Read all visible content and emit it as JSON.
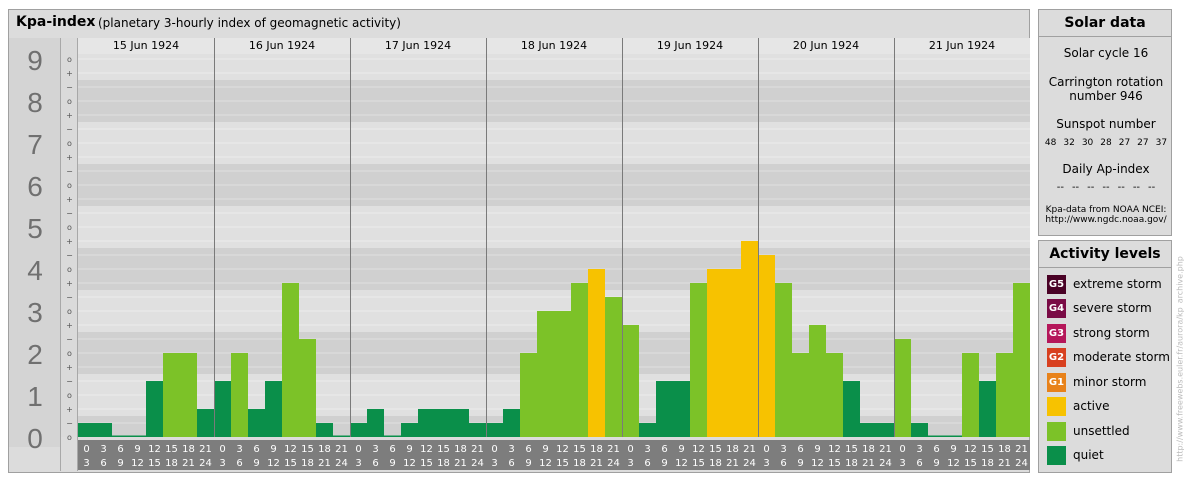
{
  "header": {
    "title": "Kpa-index",
    "subtitle": "(planetary 3-hourly index of geomagnetic activity)"
  },
  "chart_data": {
    "type": "bar",
    "title": "Kpa-index",
    "subtitle": "(planetary 3-hourly index of geomagnetic activity)",
    "ylim": [
      0,
      9
    ],
    "y_major_ticks": [
      "0",
      "1",
      "2",
      "3",
      "4",
      "5",
      "6",
      "7",
      "8",
      "9"
    ],
    "y_minor_ticks": [
      "+",
      "o",
      "−"
    ],
    "days": [
      "15 Jun 1924",
      "16 Jun 1924",
      "17 Jun 1924",
      "18 Jun 1924",
      "19 Jun 1924",
      "20 Jun 1924",
      "21 Jun 1924"
    ],
    "interval_start": [
      "0",
      "3",
      "6",
      "9",
      "12",
      "15",
      "18",
      "21"
    ],
    "interval_end": [
      "3",
      "6",
      "9",
      "12",
      "15",
      "18",
      "21",
      "24"
    ],
    "values": [
      0.333,
      0.333,
      0,
      0,
      1.333,
      2,
      2,
      0.667,
      1.333,
      2,
      0.667,
      1.333,
      3.667,
      2.333,
      0.333,
      0,
      0.333,
      0.667,
      0,
      0.333,
      0.667,
      0.667,
      0.667,
      0.333,
      0.333,
      0.667,
      2,
      3,
      3,
      3.667,
      4,
      3.333,
      2.667,
      0.333,
      1.333,
      1.333,
      3.667,
      4,
      4,
      4.667,
      4.333,
      3.667,
      2,
      2.667,
      2,
      1.333,
      0.333,
      0.333,
      2.333,
      0.333,
      0,
      0,
      2,
      1.333,
      2,
      3.667
    ],
    "colors": {
      "quiet": "#0a8f4a",
      "unsettled": "#7cc228",
      "active": "#f7c200",
      "minor_storm": "#e8821a",
      "moderate_storm": "#d8401f",
      "strong_storm": "#b5175a",
      "severe_storm": "#7a0c46",
      "extreme_storm": "#4a0226"
    }
  },
  "solar": {
    "title": "Solar data",
    "cycle": "Solar cycle 16",
    "carrington_line1": "Carrington rotation",
    "carrington_line2": "number 946",
    "sunspot_label": "Sunspot number",
    "sunspots": [
      "48",
      "32",
      "30",
      "28",
      "27",
      "27",
      "37"
    ],
    "ap_label": "Daily Ap-index",
    "ap_values": [
      "--",
      "--",
      "--",
      "--",
      "--",
      "--",
      "--"
    ],
    "credit_line1": "Kpa-data from NOAA NCEI:",
    "credit_line2": "http://www.ngdc.noaa.gov/"
  },
  "activity": {
    "title": "Activity levels",
    "items": [
      {
        "code": "G5",
        "label": "extreme storm",
        "color": "#4a0226"
      },
      {
        "code": "G4",
        "label": "severe storm",
        "color": "#7a0c46"
      },
      {
        "code": "G3",
        "label": "strong storm",
        "color": "#b5175a"
      },
      {
        "code": "G2",
        "label": "moderate storm",
        "color": "#d8401f"
      },
      {
        "code": "G1",
        "label": "minor storm",
        "color": "#e8821a"
      },
      {
        "code": "",
        "label": "active",
        "color": "#f7c200"
      },
      {
        "code": "",
        "label": "unsettled",
        "color": "#7cc228"
      },
      {
        "code": "",
        "label": "quiet",
        "color": "#0a8f4a"
      }
    ]
  },
  "watermark": "http://www.freewebs.euler.fr/aurora/kp_archive.php"
}
